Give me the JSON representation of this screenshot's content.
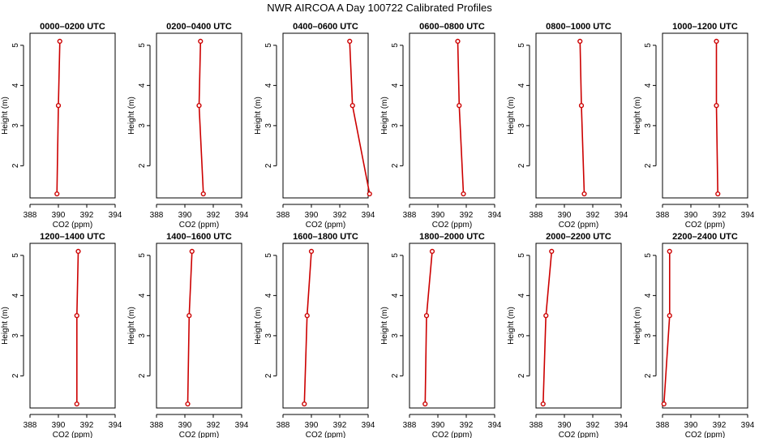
{
  "figure": {
    "title": "NWR AIRCOA A  Day 100722  Calibrated Profiles"
  },
  "style": {
    "line_color": "#cc0000",
    "point_color": "#cc0000",
    "axis_color": "#000000"
  },
  "chart_data": [
    {
      "type": "line",
      "title": "0000–0200 UTC",
      "xlabel": "CO2 (ppm)",
      "ylabel": "Height (m)",
      "xlim": [
        388,
        394
      ],
      "ylim": [
        1.2,
        5.3
      ],
      "xticks": [
        "388",
        "390",
        "392",
        "394"
      ],
      "yticks": [
        "2",
        "3",
        "4",
        "5"
      ],
      "grid": false,
      "x": [
        389.9,
        390.0,
        390.1
      ],
      "y": [
        1.3,
        3.5,
        5.1
      ]
    },
    {
      "type": "line",
      "title": "0200–0400 UTC",
      "xlabel": "CO2 (ppm)",
      "ylabel": "Height (m)",
      "xlim": [
        388,
        394
      ],
      "ylim": [
        1.2,
        5.3
      ],
      "xticks": [
        "388",
        "390",
        "392",
        "394"
      ],
      "yticks": [
        "2",
        "3",
        "4",
        "5"
      ],
      "grid": false,
      "x": [
        391.3,
        391.0,
        391.1
      ],
      "y": [
        1.3,
        3.5,
        5.1
      ]
    },
    {
      "type": "line",
      "title": "0400–0600 UTC",
      "xlabel": "CO2 (ppm)",
      "ylabel": "Height (m)",
      "xlim": [
        388,
        394
      ],
      "ylim": [
        1.2,
        5.3
      ],
      "xticks": [
        "388",
        "390",
        "392",
        "394"
      ],
      "yticks": [
        "2",
        "3",
        "4",
        "5"
      ],
      "grid": false,
      "x": [
        394.1,
        392.9,
        392.7
      ],
      "y": [
        1.3,
        3.5,
        5.1
      ]
    },
    {
      "type": "line",
      "title": "0600–0800 UTC",
      "xlabel": "CO2 (ppm)",
      "ylabel": "Height (m)",
      "xlim": [
        388,
        394
      ],
      "ylim": [
        1.2,
        5.3
      ],
      "xticks": [
        "388",
        "390",
        "392",
        "394"
      ],
      "yticks": [
        "2",
        "3",
        "4",
        "5"
      ],
      "grid": false,
      "x": [
        391.8,
        391.5,
        391.4
      ],
      "y": [
        1.3,
        3.5,
        5.1
      ]
    },
    {
      "type": "line",
      "title": "0800–1000 UTC",
      "xlabel": "CO2 (ppm)",
      "ylabel": "Height (m)",
      "xlim": [
        388,
        394
      ],
      "ylim": [
        1.2,
        5.3
      ],
      "xticks": [
        "388",
        "390",
        "392",
        "394"
      ],
      "yticks": [
        "2",
        "3",
        "4",
        "5"
      ],
      "grid": false,
      "x": [
        391.4,
        391.2,
        391.1
      ],
      "y": [
        1.3,
        3.5,
        5.1
      ]
    },
    {
      "type": "line",
      "title": "1000–1200 UTC",
      "xlabel": "CO2 (ppm)",
      "ylabel": "Height (m)",
      "xlim": [
        388,
        394
      ],
      "ylim": [
        1.2,
        5.3
      ],
      "xticks": [
        "388",
        "390",
        "392",
        "394"
      ],
      "yticks": [
        "2",
        "3",
        "4",
        "5"
      ],
      "grid": false,
      "x": [
        391.9,
        391.8,
        391.8
      ],
      "y": [
        1.3,
        3.5,
        5.1
      ]
    },
    {
      "type": "line",
      "title": "1200–1400 UTC",
      "xlabel": "CO2 (ppm)",
      "ylabel": "Height (m)",
      "xlim": [
        388,
        394
      ],
      "ylim": [
        1.2,
        5.3
      ],
      "xticks": [
        "388",
        "390",
        "392",
        "394"
      ],
      "yticks": [
        "2",
        "3",
        "4",
        "5"
      ],
      "grid": false,
      "x": [
        391.3,
        391.3,
        391.4
      ],
      "y": [
        1.3,
        3.5,
        5.1
      ]
    },
    {
      "type": "line",
      "title": "1400–1600 UTC",
      "xlabel": "CO2 (ppm)",
      "ylabel": "Height (m)",
      "xlim": [
        388,
        394
      ],
      "ylim": [
        1.2,
        5.3
      ],
      "xticks": [
        "388",
        "390",
        "392",
        "394"
      ],
      "yticks": [
        "2",
        "3",
        "4",
        "5"
      ],
      "grid": false,
      "x": [
        390.2,
        390.3,
        390.5
      ],
      "y": [
        1.3,
        3.5,
        5.1
      ]
    },
    {
      "type": "line",
      "title": "1600–1800 UTC",
      "xlabel": "CO2 (ppm)",
      "ylabel": "Height (m)",
      "xlim": [
        388,
        394
      ],
      "ylim": [
        1.2,
        5.3
      ],
      "xticks": [
        "388",
        "390",
        "392",
        "394"
      ],
      "yticks": [
        "2",
        "3",
        "4",
        "5"
      ],
      "grid": false,
      "x": [
        389.5,
        389.7,
        390.0
      ],
      "y": [
        1.3,
        3.5,
        5.1
      ]
    },
    {
      "type": "line",
      "title": "1800–2000 UTC",
      "xlabel": "CO2 (ppm)",
      "ylabel": "Height (m)",
      "xlim": [
        388,
        394
      ],
      "ylim": [
        1.2,
        5.3
      ],
      "xticks": [
        "388",
        "390",
        "392",
        "394"
      ],
      "yticks": [
        "2",
        "3",
        "4",
        "5"
      ],
      "grid": false,
      "x": [
        389.1,
        389.2,
        389.6
      ],
      "y": [
        1.3,
        3.5,
        5.1
      ]
    },
    {
      "type": "line",
      "title": "2000–2200 UTC",
      "xlabel": "CO2 (ppm)",
      "ylabel": "Height (m)",
      "xlim": [
        388,
        394
      ],
      "ylim": [
        1.2,
        5.3
      ],
      "xticks": [
        "388",
        "390",
        "392",
        "394"
      ],
      "yticks": [
        "2",
        "3",
        "4",
        "5"
      ],
      "grid": false,
      "x": [
        388.5,
        388.7,
        389.1
      ],
      "y": [
        1.3,
        3.5,
        5.1
      ]
    },
    {
      "type": "line",
      "title": "2200–2400 UTC",
      "xlabel": "CO2 (ppm)",
      "ylabel": "Height (m)",
      "xlim": [
        388,
        394
      ],
      "ylim": [
        1.2,
        5.3
      ],
      "xticks": [
        "388",
        "390",
        "392",
        "394"
      ],
      "yticks": [
        "2",
        "3",
        "4",
        "5"
      ],
      "grid": false,
      "x": [
        388.1,
        388.5,
        388.5
      ],
      "y": [
        1.3,
        3.5,
        5.1
      ]
    }
  ]
}
